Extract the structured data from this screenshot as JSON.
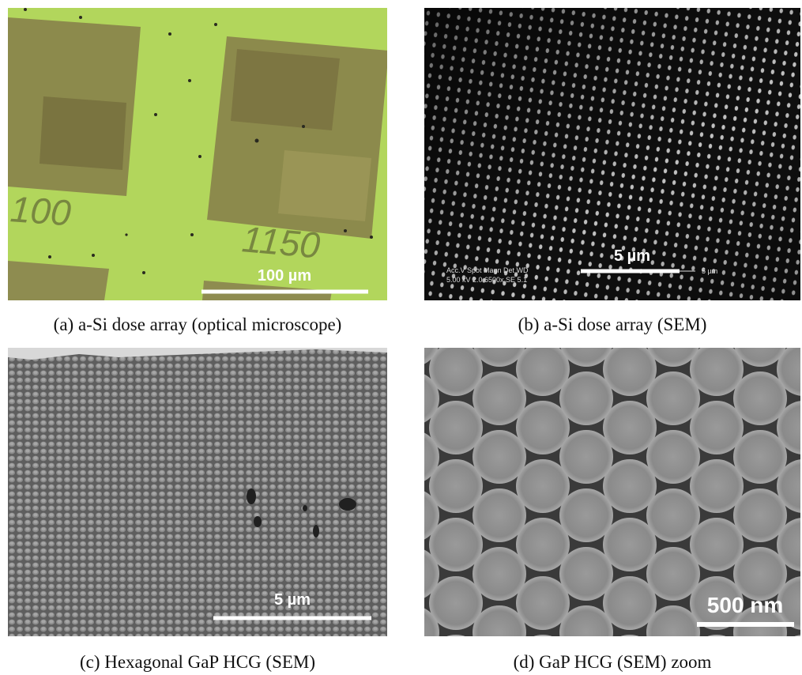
{
  "panels": [
    {
      "caption": "(a) a-Si dose array (optical microscope)",
      "scale_bar": "100 µm",
      "labels": [
        "100",
        "1150"
      ]
    },
    {
      "caption": "(b) a-Si dose array (SEM)",
      "scale_bar": "5 µm",
      "labels": [
        "Acc.V  Spot Magn   Det  WD",
        "5.00 kV 2.0  6500x   SE   5.1",
        "5 µm"
      ]
    },
    {
      "caption": "(c) Hexagonal GaP HCG (SEM)",
      "scale_bar": "5 µm"
    },
    {
      "caption": "(d) GaP HCG (SEM) zoom",
      "scale_bar": "500 nm"
    }
  ]
}
